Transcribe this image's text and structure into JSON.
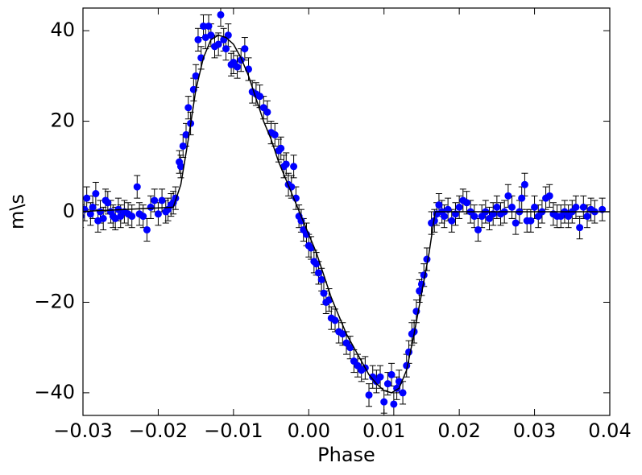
{
  "chart_data": {
    "type": "scatter",
    "x_label": "Phase",
    "y_label": "m\\s",
    "xlim": [
      -0.03,
      0.04
    ],
    "ylim": [
      -45,
      45
    ],
    "xticks": [
      {
        "value": -0.03,
        "label": "−0.03"
      },
      {
        "value": -0.02,
        "label": "−0.02"
      },
      {
        "value": -0.01,
        "label": "−0.01"
      },
      {
        "value": 0,
        "label": "0.00"
      },
      {
        "value": 0.01,
        "label": "0.01"
      },
      {
        "value": 0.02,
        "label": "0.02"
      },
      {
        "value": 0.03,
        "label": "0.03"
      },
      {
        "value": 0.04,
        "label": "0.04"
      }
    ],
    "yticks": [
      {
        "value": -40,
        "label": "−40"
      },
      {
        "value": -20,
        "label": "−20"
      },
      0,
      20,
      40
    ],
    "series": [
      {
        "type": "scatter",
        "color": "#0000ff",
        "error": 2.5,
        "x": [
          -0.0303,
          -0.0298,
          -0.0295,
          -0.029,
          -0.0287,
          -0.0283,
          -0.028,
          -0.0277,
          -0.0273,
          -0.027,
          -0.0267,
          -0.0263,
          -0.026,
          -0.0257,
          -0.0253,
          -0.025,
          -0.0245,
          -0.024,
          -0.0235,
          -0.0228,
          -0.0225,
          -0.022,
          -0.0215,
          -0.021,
          -0.0205,
          -0.02,
          -0.0195,
          -0.019,
          -0.0187,
          -0.0183,
          -0.018,
          -0.0177,
          -0.0172,
          -0.017,
          -0.0167,
          -0.0163,
          -0.016,
          -0.0157,
          -0.0153,
          -0.015,
          -0.0147,
          -0.0143,
          -0.014,
          -0.0137,
          -0.0133,
          -0.013,
          -0.0125,
          -0.012,
          -0.0117,
          -0.0113,
          -0.011,
          -0.0107,
          -0.0103,
          -0.01,
          -0.0095,
          -0.009,
          -0.0085,
          -0.008,
          -0.0075,
          -0.007,
          -0.0065,
          -0.006,
          -0.0055,
          -0.005,
          -0.0045,
          -0.004,
          -0.0037,
          -0.0033,
          -0.003,
          -0.0027,
          -0.0023,
          -0.002,
          -0.0017,
          -0.0013,
          -0.001,
          -0.0007,
          -0.0003,
          0,
          0.0003,
          0.0007,
          0.001,
          0.0013,
          0.0017,
          0.002,
          0.0023,
          0.0027,
          0.003,
          0.0035,
          0.004,
          0.0045,
          0.005,
          0.0055,
          0.006,
          0.0065,
          0.007,
          0.0075,
          0.008,
          0.0085,
          0.009,
          0.0095,
          0.01,
          0.0105,
          0.011,
          0.0113,
          0.0117,
          0.012,
          0.0125,
          0.013,
          0.0133,
          0.0137,
          0.014,
          0.0143,
          0.0147,
          0.015,
          0.0153,
          0.0157,
          0.0163,
          0.0167,
          0.017,
          0.0173,
          0.0177,
          0.018,
          0.0185,
          0.019,
          0.0195,
          0.02,
          0.0205,
          0.021,
          0.0215,
          0.022,
          0.0225,
          0.023,
          0.0235,
          0.024,
          0.0245,
          0.025,
          0.0255,
          0.026,
          0.0265,
          0.027,
          0.0275,
          0.028,
          0.0283,
          0.0287,
          0.029,
          0.0295,
          0.03,
          0.0305,
          0.031,
          0.0315,
          0.032,
          0.0325,
          0.033,
          0.0335,
          0.034,
          0.0345,
          0.035,
          0.0355,
          0.036,
          0.0365,
          0.037,
          0.0375,
          0.038,
          0.039
        ],
        "values": [
          -1,
          0.5,
          3,
          -0.5,
          1,
          4,
          -2,
          0,
          -1.5,
          2.5,
          2,
          0,
          -1,
          -1.5,
          0.5,
          -1,
          0,
          -0.5,
          -1,
          5.5,
          -0.5,
          -1,
          -4,
          1,
          2.5,
          -0.5,
          2.5,
          0,
          0.5,
          1.5,
          2,
          3,
          11,
          10,
          14.5,
          17,
          23,
          19.5,
          27,
          30,
          38,
          34,
          41,
          38.5,
          41,
          39,
          36.5,
          37,
          43.5,
          38,
          36,
          39,
          32.5,
          33,
          32,
          33.5,
          36,
          31.5,
          26.5,
          26,
          25.5,
          23,
          22,
          17.5,
          17,
          13.5,
          14,
          10,
          10.5,
          6,
          5.5,
          10,
          3,
          -1,
          -2,
          -4,
          -5,
          -7.5,
          -8,
          -11,
          -11.5,
          -13.5,
          -15,
          -18,
          -20,
          -19.5,
          -23.5,
          -24,
          -26.5,
          -27,
          -29,
          -30,
          -33,
          -34,
          -35,
          -34.5,
          -40.5,
          -36.5,
          -37.5,
          -36.5,
          -42,
          -38,
          -36,
          -42.5,
          -39,
          -37.5,
          -40,
          -34,
          -31,
          -27,
          -26.5,
          -22,
          -17.5,
          -16,
          -14,
          -10.5,
          -2.5,
          -2,
          -0.5,
          1.5,
          0,
          -1,
          0.5,
          -2,
          -0.5,
          1,
          2.5,
          2,
          0,
          -1,
          -4,
          -1,
          0,
          -1.5,
          -0.5,
          1,
          -0.5,
          0,
          3.5,
          1,
          -2.5,
          0,
          3,
          6,
          -2,
          -2,
          1,
          -1,
          0,
          3,
          3.5,
          -0.5,
          -1,
          -1,
          0,
          -1,
          0,
          1,
          -3.5,
          1,
          -1,
          0.5,
          0,
          0.5
        ]
      },
      {
        "type": "line",
        "color": "#000000",
        "x": [
          -0.031,
          -0.018,
          -0.017,
          -0.016,
          -0.015,
          -0.014,
          -0.013,
          -0.012,
          -0.011,
          -0.01,
          -0.009,
          -0.008,
          -0.007,
          -0.006,
          -0.005,
          -0.004,
          -0.003,
          -0.002,
          -0.001,
          0,
          0.001,
          0.002,
          0.003,
          0.004,
          0.005,
          0.006,
          0.007,
          0.008,
          0.009,
          0.01,
          0.011,
          0.012,
          0.013,
          0.014,
          0.015,
          0.016,
          0.0168,
          0.04
        ],
        "values": [
          0,
          1,
          6,
          16,
          27,
          34,
          38,
          39,
          38.5,
          37,
          34,
          30,
          25,
          20,
          16,
          11,
          7,
          3,
          -1,
          -5,
          -9,
          -14,
          -19,
          -23,
          -27,
          -30,
          -33,
          -36,
          -38,
          -39.5,
          -40,
          -39,
          -35,
          -27,
          -18,
          -9,
          0,
          0
        ]
      }
    ]
  }
}
